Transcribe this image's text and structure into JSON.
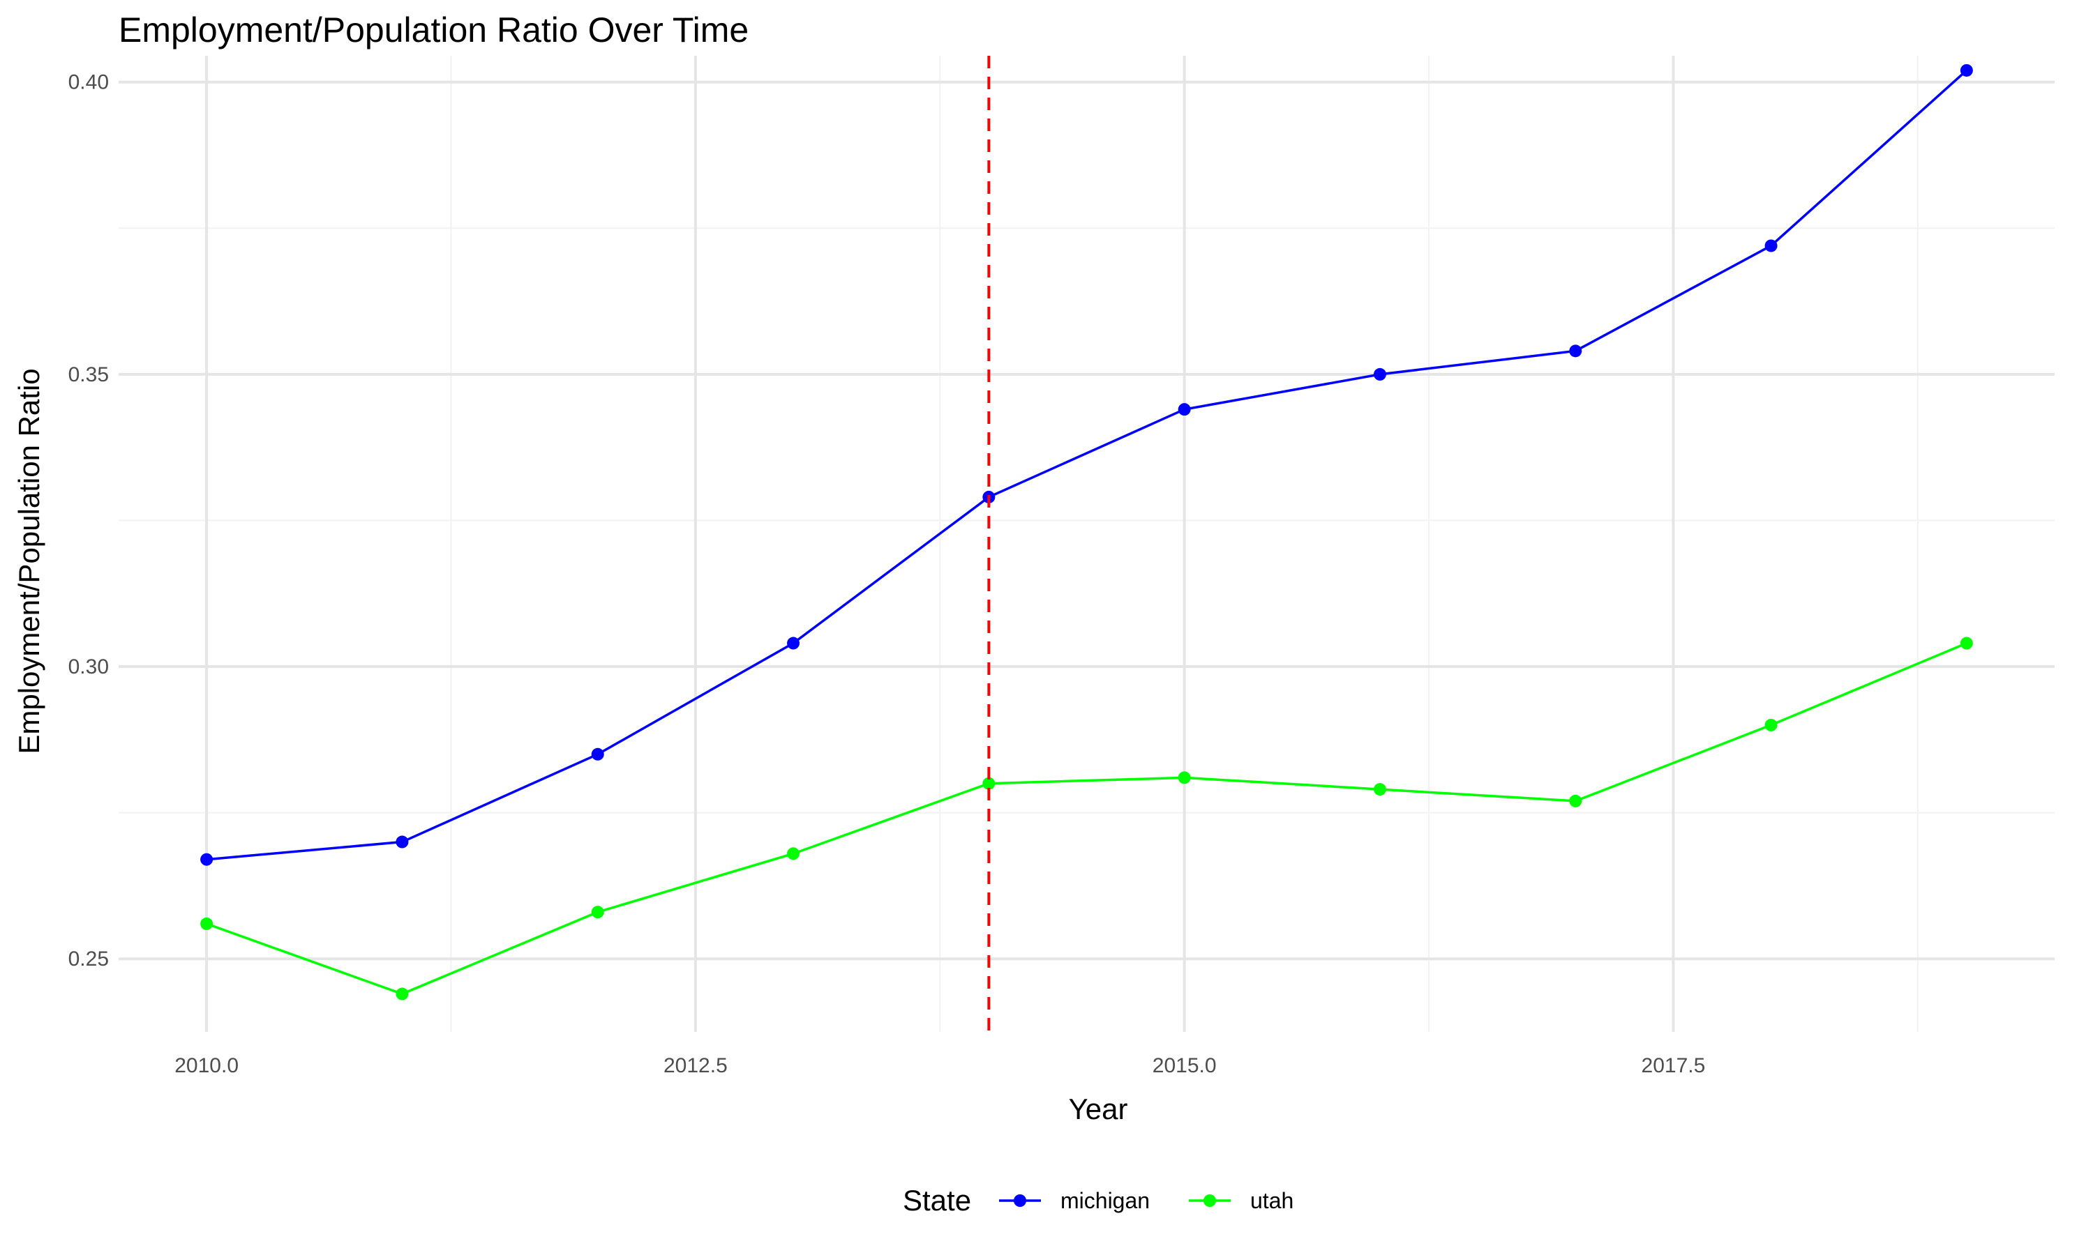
{
  "chart_data": {
    "type": "line",
    "title": "Employment/Population Ratio Over Time",
    "xlabel": "Year",
    "ylabel": "Employment/Population Ratio",
    "xlim": [
      2009.55,
      2019.45
    ],
    "ylim": [
      0.2375,
      0.4045
    ],
    "x_ticks": [
      2010.0,
      2012.5,
      2015.0,
      2017.5
    ],
    "x_tick_labels": [
      "2010.0",
      "2012.5",
      "2015.0",
      "2017.5"
    ],
    "y_ticks": [
      0.25,
      0.3,
      0.35,
      0.4
    ],
    "y_tick_labels": [
      "0.25",
      "0.30",
      "0.35",
      "0.40"
    ],
    "grid": true,
    "legend_position": "bottom",
    "legend_title": "State",
    "vline": {
      "x": 2014,
      "color": "#ff0000",
      "style": "dashed"
    },
    "x": [
      2010,
      2011,
      2012,
      2013,
      2014,
      2015,
      2016,
      2017,
      2018,
      2019
    ],
    "series": [
      {
        "name": "michigan",
        "color": "#0000ff",
        "values": [
          0.267,
          0.27,
          0.285,
          0.304,
          0.329,
          0.344,
          0.35,
          0.354,
          0.372,
          0.402
        ]
      },
      {
        "name": "utah",
        "color": "#00ff00",
        "values": [
          0.256,
          0.244,
          0.258,
          0.268,
          0.28,
          0.281,
          0.279,
          0.277,
          0.29,
          0.304
        ]
      }
    ]
  }
}
